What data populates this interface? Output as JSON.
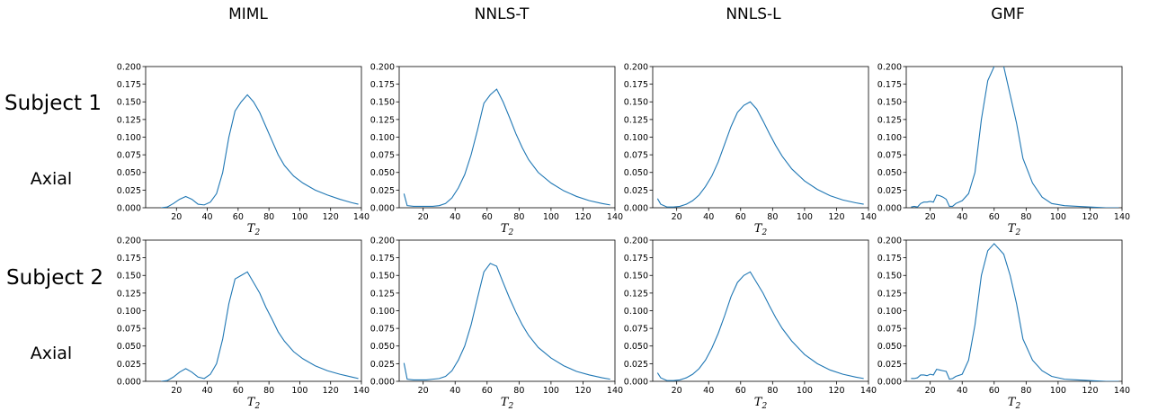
{
  "column_titles": [
    "MIML",
    "NNLS-T",
    "NNLS-L",
    "GMF"
  ],
  "row_labels": [
    {
      "subject": "Subject 1",
      "view": "Axial"
    },
    {
      "subject": "Subject 2",
      "view": "Axial"
    }
  ],
  "line_color": "#1f77b4",
  "chart_data": [
    {
      "type": "line",
      "method": "MIML",
      "subject": "Subject 1",
      "xlabel": "T",
      "xlabel_sub": "2",
      "xlim": [
        0,
        140
      ],
      "ylim": [
        0,
        0.2
      ],
      "xticks": [
        20,
        40,
        60,
        80,
        100,
        120,
        140
      ],
      "yticks": [
        0.0,
        0.025,
        0.05,
        0.075,
        0.1,
        0.125,
        0.15,
        0.175,
        0.2
      ],
      "series": [
        {
          "x": [
            10,
            14,
            18,
            22,
            26,
            30,
            34,
            38,
            42,
            46,
            50,
            54,
            58,
            62,
            66,
            70,
            74,
            78,
            82,
            86,
            90,
            96,
            102,
            110,
            118,
            126,
            134,
            138
          ],
          "y": [
            0.0,
            0.001,
            0.006,
            0.012,
            0.016,
            0.012,
            0.005,
            0.004,
            0.008,
            0.02,
            0.05,
            0.1,
            0.137,
            0.15,
            0.16,
            0.15,
            0.135,
            0.115,
            0.095,
            0.075,
            0.06,
            0.045,
            0.035,
            0.025,
            0.018,
            0.012,
            0.007,
            0.005
          ]
        }
      ]
    },
    {
      "type": "line",
      "method": "NNLS-T",
      "subject": "Subject 1",
      "xlabel": "T",
      "xlabel_sub": "2",
      "xlim": [
        5,
        140
      ],
      "ylim": [
        0,
        0.2
      ],
      "xticks": [
        20,
        40,
        60,
        80,
        100,
        120,
        140
      ],
      "yticks": [
        0.0,
        0.025,
        0.05,
        0.075,
        0.1,
        0.125,
        0.15,
        0.175,
        0.2
      ],
      "series": [
        {
          "x": [
            8,
            10,
            14,
            18,
            22,
            26,
            30,
            34,
            38,
            42,
            46,
            50,
            54,
            58,
            62,
            66,
            70,
            74,
            78,
            82,
            86,
            92,
            100,
            108,
            116,
            124,
            132,
            137
          ],
          "y": [
            0.02,
            0.003,
            0.002,
            0.002,
            0.002,
            0.002,
            0.003,
            0.006,
            0.014,
            0.028,
            0.047,
            0.075,
            0.11,
            0.148,
            0.16,
            0.168,
            0.15,
            0.128,
            0.105,
            0.085,
            0.068,
            0.05,
            0.035,
            0.024,
            0.016,
            0.01,
            0.006,
            0.004
          ]
        }
      ]
    },
    {
      "type": "line",
      "method": "NNLS-L",
      "subject": "Subject 1",
      "xlabel": "T",
      "xlabel_sub": "2",
      "xlim": [
        5,
        140
      ],
      "ylim": [
        0,
        0.2
      ],
      "xticks": [
        20,
        40,
        60,
        80,
        100,
        120,
        140
      ],
      "yticks": [
        0.0,
        0.025,
        0.05,
        0.075,
        0.1,
        0.125,
        0.15,
        0.175,
        0.2
      ],
      "series": [
        {
          "x": [
            8,
            10,
            14,
            18,
            22,
            26,
            30,
            34,
            38,
            42,
            46,
            50,
            54,
            58,
            62,
            66,
            70,
            74,
            78,
            82,
            86,
            92,
            100,
            108,
            116,
            124,
            132,
            137
          ],
          "y": [
            0.013,
            0.005,
            0.001,
            0.001,
            0.002,
            0.005,
            0.01,
            0.018,
            0.03,
            0.045,
            0.065,
            0.09,
            0.115,
            0.135,
            0.145,
            0.15,
            0.14,
            0.123,
            0.105,
            0.088,
            0.073,
            0.055,
            0.038,
            0.026,
            0.017,
            0.011,
            0.007,
            0.005
          ]
        }
      ]
    },
    {
      "type": "line",
      "method": "GMF",
      "subject": "Subject 1",
      "xlabel": "T",
      "xlabel_sub": "2",
      "xlim": [
        5,
        140
      ],
      "ylim": [
        0,
        0.2
      ],
      "xticks": [
        20,
        40,
        60,
        80,
        100,
        120,
        140
      ],
      "yticks": [
        0.0,
        0.025,
        0.05,
        0.075,
        0.1,
        0.125,
        0.15,
        0.175,
        0.2
      ],
      "series": [
        {
          "x": [
            8,
            10,
            12,
            14,
            16,
            18,
            20,
            22,
            24,
            26,
            28,
            30,
            32,
            34,
            36,
            40,
            44,
            48,
            52,
            56,
            60,
            64,
            66,
            70,
            74,
            78,
            84,
            90,
            96,
            104,
            112,
            120,
            130,
            138
          ],
          "y": [
            0.001,
            0.002,
            0.001,
            0.006,
            0.008,
            0.008,
            0.009,
            0.008,
            0.018,
            0.017,
            0.015,
            0.012,
            0.002,
            0.002,
            0.006,
            0.01,
            0.02,
            0.05,
            0.125,
            0.18,
            0.2,
            0.205,
            0.2,
            0.16,
            0.12,
            0.07,
            0.035,
            0.015,
            0.006,
            0.003,
            0.002,
            0.001,
            0.0,
            0.0
          ]
        }
      ]
    },
    {
      "type": "line",
      "method": "MIML",
      "subject": "Subject 2",
      "xlabel": "T",
      "xlabel_sub": "2",
      "xlim": [
        0,
        140
      ],
      "ylim": [
        0,
        0.2
      ],
      "xticks": [
        20,
        40,
        60,
        80,
        100,
        120,
        140
      ],
      "yticks": [
        0.0,
        0.025,
        0.05,
        0.075,
        0.1,
        0.125,
        0.15,
        0.175,
        0.2
      ],
      "series": [
        {
          "x": [
            10,
            14,
            18,
            22,
            26,
            30,
            34,
            38,
            42,
            46,
            50,
            54,
            58,
            62,
            66,
            70,
            74,
            78,
            82,
            86,
            90,
            96,
            102,
            110,
            118,
            126,
            134,
            138
          ],
          "y": [
            0.0,
            0.001,
            0.006,
            0.013,
            0.018,
            0.013,
            0.006,
            0.004,
            0.01,
            0.025,
            0.06,
            0.11,
            0.145,
            0.15,
            0.155,
            0.14,
            0.125,
            0.105,
            0.088,
            0.07,
            0.057,
            0.042,
            0.032,
            0.022,
            0.015,
            0.01,
            0.006,
            0.004
          ]
        }
      ]
    },
    {
      "type": "line",
      "method": "NNLS-T",
      "subject": "Subject 2",
      "xlabel": "T",
      "xlabel_sub": "2",
      "xlim": [
        5,
        140
      ],
      "ylim": [
        0,
        0.2
      ],
      "xticks": [
        20,
        40,
        60,
        80,
        100,
        120,
        140
      ],
      "yticks": [
        0.0,
        0.025,
        0.05,
        0.075,
        0.1,
        0.125,
        0.15,
        0.175,
        0.2
      ],
      "series": [
        {
          "x": [
            8,
            10,
            14,
            18,
            22,
            26,
            30,
            34,
            38,
            42,
            46,
            50,
            54,
            58,
            62,
            66,
            70,
            74,
            78,
            82,
            86,
            92,
            100,
            108,
            116,
            124,
            132,
            137
          ],
          "y": [
            0.026,
            0.003,
            0.002,
            0.002,
            0.002,
            0.003,
            0.004,
            0.007,
            0.015,
            0.03,
            0.05,
            0.08,
            0.118,
            0.155,
            0.167,
            0.163,
            0.14,
            0.118,
            0.098,
            0.08,
            0.065,
            0.048,
            0.033,
            0.022,
            0.014,
            0.009,
            0.005,
            0.003
          ]
        }
      ]
    },
    {
      "type": "line",
      "method": "NNLS-L",
      "subject": "Subject 2",
      "xlabel": "T",
      "xlabel_sub": "2",
      "xlim": [
        5,
        140
      ],
      "ylim": [
        0,
        0.2
      ],
      "xticks": [
        20,
        40,
        60,
        80,
        100,
        120,
        140
      ],
      "yticks": [
        0.0,
        0.025,
        0.05,
        0.075,
        0.1,
        0.125,
        0.15,
        0.175,
        0.2
      ],
      "series": [
        {
          "x": [
            8,
            10,
            14,
            18,
            22,
            26,
            30,
            34,
            38,
            42,
            46,
            50,
            54,
            58,
            62,
            66,
            70,
            74,
            78,
            82,
            86,
            92,
            100,
            108,
            116,
            124,
            132,
            137
          ],
          "y": [
            0.012,
            0.005,
            0.001,
            0.001,
            0.002,
            0.005,
            0.01,
            0.018,
            0.03,
            0.047,
            0.068,
            0.093,
            0.12,
            0.14,
            0.15,
            0.155,
            0.14,
            0.125,
            0.107,
            0.09,
            0.075,
            0.057,
            0.038,
            0.025,
            0.016,
            0.01,
            0.006,
            0.004
          ]
        }
      ]
    },
    {
      "type": "line",
      "method": "GMF",
      "subject": "Subject 2",
      "xlabel": "T",
      "xlabel_sub": "2",
      "xlim": [
        5,
        140
      ],
      "ylim": [
        0,
        0.2
      ],
      "xticks": [
        20,
        40,
        60,
        80,
        100,
        120,
        140
      ],
      "yticks": [
        0.0,
        0.025,
        0.05,
        0.075,
        0.1,
        0.125,
        0.15,
        0.175,
        0.2
      ],
      "series": [
        {
          "x": [
            8,
            10,
            12,
            14,
            16,
            18,
            20,
            22,
            24,
            26,
            28,
            30,
            32,
            34,
            36,
            40,
            44,
            48,
            52,
            56,
            60,
            64,
            66,
            70,
            74,
            78,
            84,
            90,
            96,
            104,
            112,
            120,
            130,
            138
          ],
          "y": [
            0.004,
            0.004,
            0.005,
            0.009,
            0.009,
            0.008,
            0.01,
            0.009,
            0.017,
            0.016,
            0.015,
            0.014,
            0.003,
            0.004,
            0.007,
            0.01,
            0.03,
            0.08,
            0.15,
            0.185,
            0.195,
            0.185,
            0.18,
            0.15,
            0.11,
            0.06,
            0.03,
            0.015,
            0.007,
            0.003,
            0.002,
            0.001,
            0.0,
            0.0
          ]
        }
      ]
    }
  ]
}
